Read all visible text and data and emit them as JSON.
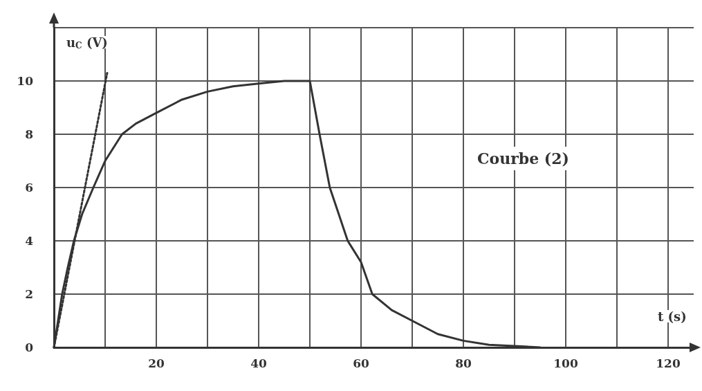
{
  "chart_data": {
    "type": "line",
    "xlabel": "t (s)",
    "ylabel": "u$_{C}$ (V)",
    "annotations": [
      "Courbe (2)"
    ],
    "xlim": [
      0,
      125
    ],
    "ylim": [
      0,
      12
    ],
    "xticks": [
      {
        "value": 0,
        "label": null
      },
      {
        "value": 10,
        "label": null
      },
      20,
      {
        "value": 30,
        "label": null
      },
      40,
      {
        "value": 50,
        "label": null
      },
      60,
      {
        "value": 70,
        "label": null
      },
      80,
      {
        "value": 90,
        "label": null
      },
      100,
      {
        "value": 110,
        "label": null
      },
      120
    ],
    "yticks": [
      0,
      2,
      4,
      6,
      8,
      10,
      {
        "value": 12,
        "label": null
      }
    ],
    "grid": true,
    "marker": "none",
    "series": [
      {
        "color": "#333333",
        "line_style": "solid",
        "x": [
          0,
          0.8,
          1.6,
          2.7,
          3.9,
          5.5,
          7.7,
          10,
          13.3,
          16,
          20,
          25,
          30,
          35,
          40,
          45,
          50,
          51.9,
          53.9,
          57.4,
          60,
          62.2,
          66,
          70,
          75,
          80,
          85,
          90,
          95
        ],
        "values": [
          0,
          1,
          2,
          3,
          4,
          5,
          6,
          7,
          8,
          8.4,
          8.8,
          9.3,
          9.6,
          9.8,
          9.9,
          10,
          10,
          8,
          6,
          4,
          3.2,
          2,
          1.4,
          1.0,
          0.5,
          0.25,
          0.1,
          0.05,
          0
        ]
      },
      {
        "color": "#333333",
        "line_style": "dotted",
        "x": [
          0,
          10.4
        ],
        "values": [
          0,
          10.3
        ]
      }
    ]
  }
}
